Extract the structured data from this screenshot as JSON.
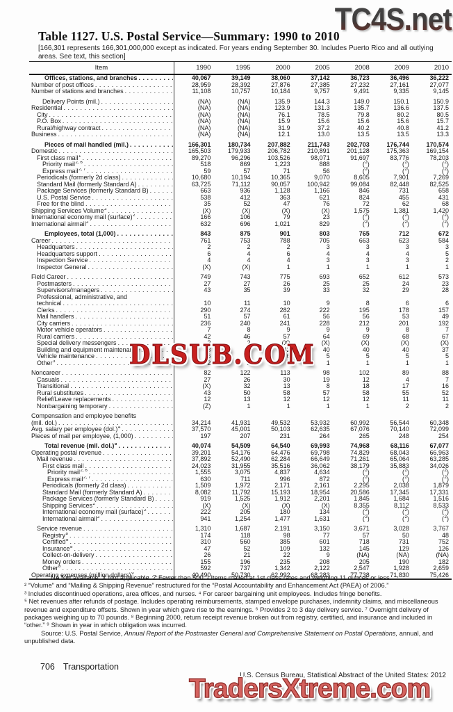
{
  "watermarks": {
    "top": "TC4S.net",
    "middle": "DLSUB.COM",
    "bottom": "TradersXtreme.com"
  },
  "page": {
    "title": "Table 1127. U.S. Postal Service—Summary: 1990 to 2010",
    "note": "[166,301 represents 166,301,000,000 except as indicated. For years ending September 30. Includes Puerto Rico and all outlying areas. See text, this section]",
    "footer_left_number": "706",
    "footer_left_section": "Transportation",
    "footer_right": "U.S. Census Bureau, Statistical Abstract of the United States: 2012"
  },
  "table": {
    "item_header": "Item",
    "columns": [
      "1990",
      "1995",
      "2000",
      "2005",
      "2008",
      "2009",
      "2010"
    ],
    "rows": [
      {
        "label": "Offices, stations, and branches",
        "bold": true,
        "cells": [
          "40,067",
          "39,149",
          "38,060",
          "37,142",
          "36,723",
          "36,496",
          "36,222"
        ]
      },
      {
        "label": "Number of post offices",
        "cells": [
          "28,959",
          "28,392",
          "27,876",
          "27,385",
          "27,232",
          "27,161",
          "27,077"
        ]
      },
      {
        "label": "Number of stations and branches",
        "cells": [
          "11,108",
          "10,757",
          "10,184",
          "9,757",
          "9,491",
          "9,335",
          "9,145"
        ]
      },
      {
        "label": "Delivery Points (mil.)",
        "indent": 2,
        "spacer": true,
        "cells": [
          "(NA)",
          "(NA)",
          "135.9",
          "144.3",
          "149.0",
          "150.1",
          "150.9"
        ]
      },
      {
        "label": "Residential",
        "cells": [
          "(NA)",
          "(NA)",
          "123.9",
          "131.3",
          "135.7",
          "136.6",
          "137.5"
        ]
      },
      {
        "label": "City",
        "indent": 1,
        "cells": [
          "(NA)",
          "(NA)",
          "76.1",
          "78.5",
          "79.8",
          "80.2",
          "80.5"
        ]
      },
      {
        "label": "P.O. Box",
        "indent": 1,
        "cells": [
          "(NA)",
          "(NA)",
          "15.9",
          "15.6",
          "15.6",
          "15.6",
          "15.7"
        ]
      },
      {
        "label": "Rural/highway contract",
        "indent": 1,
        "cells": [
          "(NA)",
          "(NA)",
          "31.9",
          "37.2",
          "40.2",
          "40.8",
          "41.2"
        ]
      },
      {
        "label": "Business",
        "cells": [
          "(NA)",
          "(NA)",
          "12.1",
          "13.0",
          "13.5",
          "13.5",
          "13.3"
        ]
      },
      {
        "label": "Pieces of mail handled (mil.)",
        "bold": true,
        "spacer": true,
        "cells": [
          "166,301",
          "180,734",
          "207,882",
          "211,743",
          "202,703",
          "176,744",
          "170,574"
        ]
      },
      {
        "label": "Domestic",
        "cells": [
          "165,503",
          "179,933",
          "206,782",
          "210,891",
          "201,128",
          "175,363",
          "169,154"
        ]
      },
      {
        "label": "First class mail",
        "sup": "1",
        "indent": 1,
        "cells": [
          "89,270",
          "96,296",
          "103,526",
          "98,071",
          "91,697",
          "83,776",
          "78,203"
        ]
      },
      {
        "label": "Priority mail",
        "sup": "2, 6",
        "indent": 2,
        "cells": [
          "518",
          "869",
          "1,223",
          "888",
          "(2)",
          "(2)",
          "(2)"
        ]
      },
      {
        "label": "Express mail",
        "sup": "2, 7",
        "indent": 2,
        "cells": [
          "59",
          "57",
          "71",
          "56",
          "(2)",
          "(2)",
          "(2)"
        ]
      },
      {
        "label": "Periodicals (formerly 2d class)",
        "indent": 1,
        "cells": [
          "10,680",
          "10,194",
          "10,365",
          "9,070",
          "8,605",
          "7,901",
          "7,269"
        ]
      },
      {
        "label": "Standard Mail (formerly Standard A)",
        "indent": 1,
        "cells": [
          "63,725",
          "71,112",
          "90,057",
          "100,942",
          "99,084",
          "82,448",
          "82,525"
        ]
      },
      {
        "label": "Package Services (formerly Standard B)",
        "indent": 1,
        "cells": [
          "663",
          "936",
          "1,128",
          "1,166",
          "846",
          "731",
          "658"
        ]
      },
      {
        "label": "U.S. Postal Service",
        "indent": 1,
        "cells": [
          "538",
          "412",
          "363",
          "621",
          "824",
          "455",
          "431"
        ]
      },
      {
        "label": "Free for the blind",
        "indent": 1,
        "cells": [
          "35",
          "52",
          "47",
          "76",
          "72",
          "62",
          "68"
        ]
      },
      {
        "label": "Shipping Services Volume",
        "sup": "2",
        "cells": [
          "(X)",
          "(X)",
          "(X)",
          "(X)",
          "1,575",
          "1,381",
          "1,420"
        ]
      },
      {
        "label": "International economy mail (surface)",
        "sup": "2",
        "cells": [
          "166",
          "106",
          "79",
          "23",
          "(2)",
          "(2)",
          "(2)"
        ]
      },
      {
        "label": "International airmail",
        "sup": "2",
        "cells": [
          "632",
          "696",
          "1,021",
          "829",
          "(2)",
          "(2)",
          "(2)"
        ]
      },
      {
        "label": "Employees, total (1,000)",
        "bold": true,
        "spacer": true,
        "cells": [
          "843",
          "875",
          "901",
          "803",
          "765",
          "712",
          "672"
        ]
      },
      {
        "label": "Career",
        "cells": [
          "761",
          "753",
          "788",
          "705",
          "663",
          "623",
          "584"
        ]
      },
      {
        "label": "Headquarters",
        "indent": 1,
        "cells": [
          "2",
          "2",
          "2",
          "3",
          "3",
          "3",
          "3"
        ]
      },
      {
        "label": "Headquarters support",
        "indent": 1,
        "cells": [
          "6",
          "4",
          "6",
          "4",
          "4",
          "4",
          "5"
        ]
      },
      {
        "label": "Inspection Service",
        "indent": 1,
        "cells": [
          "4",
          "4",
          "4",
          "3",
          "3",
          "3",
          "2"
        ]
      },
      {
        "label": "Inspector General",
        "indent": 1,
        "cells": [
          "(X)",
          "(X)",
          "1",
          "1",
          "1",
          "1",
          "1"
        ]
      },
      {
        "label": "Field Career",
        "spacer": true,
        "cells": [
          "749",
          "743",
          "775",
          "693",
          "652",
          "612",
          "573"
        ]
      },
      {
        "label": "Postmasters",
        "indent": 1,
        "cells": [
          "27",
          "27",
          "26",
          "25",
          "25",
          "24",
          "23"
        ]
      },
      {
        "label": "Supervisors/managers",
        "indent": 1,
        "cells": [
          "43",
          "35",
          "39",
          "33",
          "32",
          "29",
          "28"
        ]
      },
      {
        "label": "Professional, administrative, and",
        "indent": 1,
        "nocells": true
      },
      {
        "label": "technical",
        "indent": 1,
        "cells": [
          "10",
          "11",
          "10",
          "9",
          "8",
          "6",
          "6"
        ]
      },
      {
        "label": "Clerks",
        "indent": 1,
        "cells": [
          "290",
          "274",
          "282",
          "222",
          "195",
          "178",
          "157"
        ]
      },
      {
        "label": "Mail handlers",
        "indent": 1,
        "cells": [
          "51",
          "57",
          "61",
          "56",
          "56",
          "53",
          "49"
        ]
      },
      {
        "label": "City carriers",
        "indent": 1,
        "cells": [
          "236",
          "240",
          "241",
          "228",
          "212",
          "201",
          "192"
        ]
      },
      {
        "label": "Motor vehicle operators",
        "indent": 1,
        "cells": [
          "7",
          "8",
          "9",
          "9",
          "9",
          "8",
          "7"
        ]
      },
      {
        "label": "Rural carriers",
        "indent": 1,
        "cells": [
          "42",
          "46",
          "57",
          "64",
          "69",
          "68",
          "67"
        ]
      },
      {
        "label": "Special delivery messengers",
        "indent": 1,
        "cells": [
          "2",
          "2",
          "(X)",
          "(X)",
          "(X)",
          "(X)",
          "(X)"
        ]
      },
      {
        "label": "Building and equipment maintenance",
        "indent": 1,
        "cells": [
          "33",
          "38",
          "42",
          "40",
          "40",
          "40",
          "37"
        ]
      },
      {
        "label": "Vehicle maintenance",
        "indent": 1,
        "cells": [
          "6",
          "5",
          "6",
          "5",
          "5",
          "5",
          "5"
        ]
      },
      {
        "label": "Other",
        "sup": "3",
        "indent": 1,
        "cells": [
          "2",
          "2",
          "2",
          "1",
          "1",
          "1",
          "1"
        ]
      },
      {
        "label": "Noncareer",
        "spacer": true,
        "cells": [
          "82",
          "122",
          "113",
          "98",
          "102",
          "89",
          "88"
        ]
      },
      {
        "label": "Casuals",
        "indent": 1,
        "cells": [
          "27",
          "26",
          "30",
          "19",
          "12",
          "4",
          "7"
        ]
      },
      {
        "label": "Transitional",
        "indent": 1,
        "cells": [
          "(X)",
          "32",
          "13",
          "8",
          "18",
          "17",
          "16"
        ]
      },
      {
        "label": "Rural substitutes",
        "indent": 1,
        "cells": [
          "43",
          "50",
          "58",
          "57",
          "58",
          "55",
          "52"
        ]
      },
      {
        "label": "Relief/Leave replacements",
        "indent": 1,
        "cells": [
          "12",
          "13",
          "12",
          "12",
          "12",
          "11",
          "11"
        ]
      },
      {
        "label": "Nonbargaining temporary",
        "indent": 1,
        "cells": [
          "(Z)",
          "1",
          "1",
          "1",
          "1",
          "2",
          "2"
        ]
      },
      {
        "label": "Compensation and employee benefits",
        "spacer": true,
        "nocells": true
      },
      {
        "label": "(mil. dol.)",
        "cells": [
          "34,214",
          "41,931",
          "49,532",
          "53,932",
          "60,992",
          "56,544",
          "60,348"
        ]
      },
      {
        "label": "Avg. salary per employee (dol.)",
        "sup": "4",
        "cells": [
          "37,570",
          "45,001",
          "50,103",
          "62,635",
          "67,076",
          "70,140",
          "72,099"
        ]
      },
      {
        "label": "Pieces of mail per employee, (1,000)",
        "cells": [
          "197",
          "207",
          "231",
          "264",
          "265",
          "248",
          "254"
        ]
      },
      {
        "label": "Total revenue (mil. dol.)",
        "sup": "5",
        "bold": true,
        "spacer": true,
        "cells": [
          "40,074",
          "54,509",
          "64,540",
          "69,993",
          "74,968",
          "68,116",
          "67,077"
        ]
      },
      {
        "label": "Operating postal revenue",
        "cells": [
          "39,201",
          "54,176",
          "64,476",
          "69,798",
          "74,829",
          "68,043",
          "66,963"
        ]
      },
      {
        "label": "Mail revenue",
        "indent": 1,
        "cells": [
          "37,892",
          "52,490",
          "62,284",
          "66,649",
          "71,261",
          "65,064",
          "63,285"
        ]
      },
      {
        "label": "First class mail",
        "indent": 2,
        "cells": [
          "24,023",
          "31,955",
          "35,516",
          "36,062",
          "38,179",
          "35,883",
          "34,026"
        ]
      },
      {
        "label": "Priority mail",
        "sup": "2, 6",
        "indent": 3,
        "cells": [
          "1,555",
          "3,075",
          "4,837",
          "4,634",
          "(2)",
          "(2)",
          "(2)"
        ]
      },
      {
        "label": "Express mail",
        "sup": "2, 7",
        "indent": 3,
        "cells": [
          "630",
          "711",
          "996",
          "872",
          "(2)",
          "(2)",
          "(2)"
        ]
      },
      {
        "label": "Periodicals (formerly 2d class)",
        "indent": 2,
        "cells": [
          "1,509",
          "1,972",
          "2,171",
          "2,161",
          "2,295",
          "2,038",
          "1,879"
        ]
      },
      {
        "label": "Standard Mail (formerly Standard A)",
        "indent": 2,
        "cells": [
          "8,082",
          "11,792",
          "15,193",
          "18,954",
          "20,586",
          "17,345",
          "17,331"
        ]
      },
      {
        "label": "Package Services (formerly Standard B)",
        "indent": 2,
        "cells": [
          "919",
          "1,525",
          "1,912",
          "2,201",
          "1,845",
          "1,684",
          "1,516"
        ]
      },
      {
        "label": "Shipping Services",
        "sup": "2",
        "indent": 2,
        "cells": [
          "(X)",
          "(X)",
          "(X)",
          "(X)",
          "8,355",
          "8,112",
          "8,533"
        ]
      },
      {
        "label": "International economy mail (surface)",
        "sup": "2",
        "indent": 2,
        "cells": [
          "222",
          "205",
          "180",
          "134",
          "(2)",
          "(2)",
          "(2)"
        ]
      },
      {
        "label": "International airmail",
        "sup": "2",
        "indent": 2,
        "cells": [
          "941",
          "1,254",
          "1,477",
          "1,631",
          "(2)",
          "(2)",
          "(2)"
        ]
      },
      {
        "label": "Service revenue",
        "indent": 1,
        "spacer": true,
        "cells": [
          "1,310",
          "1,687",
          "2,191",
          "3,150",
          "3,671",
          "3,028",
          "3,767"
        ]
      },
      {
        "label": "Registry",
        "sup": "8",
        "indent": 2,
        "cells": [
          "174",
          "118",
          "98",
          "77",
          "57",
          "50",
          "48"
        ]
      },
      {
        "label": "Certified",
        "sup": "8",
        "indent": 2,
        "cells": [
          "310",
          "560",
          "385",
          "601",
          "718",
          "731",
          "752"
        ]
      },
      {
        "label": "Insurance",
        "sup": "8",
        "indent": 2,
        "cells": [
          "47",
          "52",
          "109",
          "132",
          "145",
          "129",
          "126"
        ]
      },
      {
        "label": "Collect-on-delivery",
        "indent": 2,
        "cells": [
          "26",
          "21",
          "22",
          "9",
          "(NA)",
          "(NA)",
          "(NA)"
        ]
      },
      {
        "label": "Money orders",
        "indent": 2,
        "cells": [
          "155",
          "196",
          "235",
          "208",
          "205",
          "190",
          "182"
        ]
      },
      {
        "label": "Other",
        "sup": "8",
        "indent": 2,
        "cells": [
          "592",
          "737",
          "1,342",
          "2,122",
          "2,547",
          "1,928",
          "2,659"
        ]
      },
      {
        "label": "Operating expenses (million dollars)",
        "sup": "9",
        "cells": [
          "40,490",
          "50,730",
          "62,992",
          "68,283",
          "77,738",
          "71,830",
          "75,426"
        ]
      }
    ]
  },
  "footnotes": {
    "lines": [
      "NA Not available. X Not applicable. Z Fewer than 500. ¹ Items mailed at 1st class rates and weighing 11 ounces or less.",
      "² “Volume” and “Mailing & Shipping Revenue” restructured for the “Postal Accountability and Enhancement Act (PAEA) of 2006.”",
      "³ Includes discontinued operations, area offices, and nurses. ⁴ For career bargaining unit employees. Includes fringe benefits.",
      "⁵ Net revenues after refunds of postage. Includes operating reimbursements, stamped envelope purchases, indemnity claims, and miscellaneous revenue and expenditure offsets. Shown in year which gave  rise to the earnings. ⁶ Provides 2 to 3 day delivery service. ⁷ Overnight delivery of packages weighing up to 70 pounds. ⁸ Beginning 2000, return receipt revenue broken out from registry, certified, and insurance and included in “other.” ⁹ Shown in year in which obligation was incurred."
    ],
    "source_prefix": "Source: U.S. Postal Service, ",
    "source_italic": "Annual Report of the Postmaster General and Comprehensive Statement on Postal Operations,",
    "source_suffix": " annual, and unpublished data."
  }
}
